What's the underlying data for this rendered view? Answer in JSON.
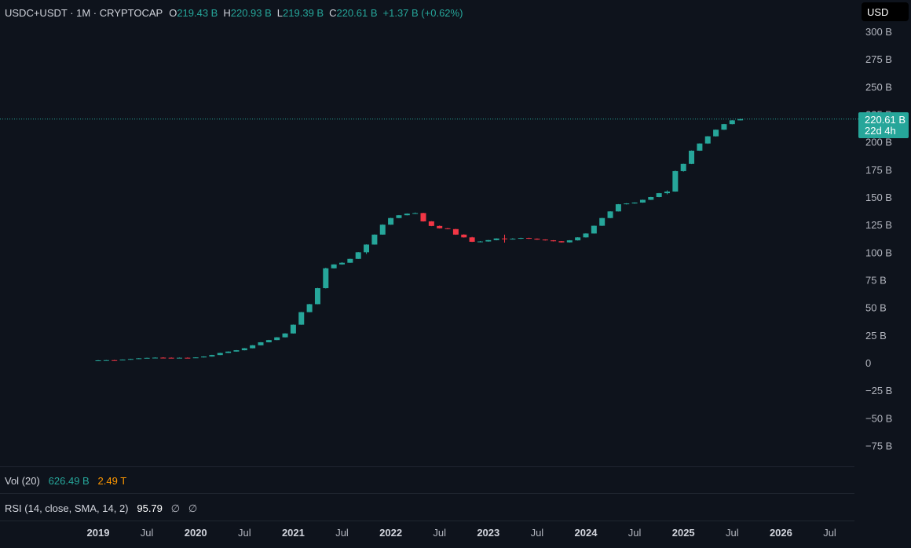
{
  "header": {
    "symbol": "USDC+USDT · 1M · CRYPTOCAP",
    "open_label": "O",
    "open": "219.43 B",
    "high_label": "H",
    "high": "220.93 B",
    "low_label": "L",
    "low": "219.39 B",
    "close_label": "C",
    "close": "220.61 B",
    "change": "+1.37 B (+0.62%)"
  },
  "currency_button": "USD",
  "price_label": {
    "value": "220.61 B",
    "countdown": "22d 4h"
  },
  "volume_pane": {
    "name": "Vol (20)",
    "value1": "626.49 B",
    "value2": "2.49 T"
  },
  "rsi_pane": {
    "name": "RSI (14, close, SMA, 14, 2)",
    "value": "95.79",
    "na1": "∅",
    "na2": "∅"
  },
  "colors": {
    "up": "#26a69a",
    "down": "#f23645",
    "background": "#0e131c",
    "text": "#b2b5be"
  },
  "chart_data": {
    "type": "candlestick",
    "title": "USDC+USDT · 1M · CRYPTOCAP",
    "xlabel": "",
    "ylabel": "",
    "ylim": [
      -85,
      315
    ],
    "y_ticks": [
      300,
      275,
      250,
      225,
      200,
      175,
      150,
      125,
      100,
      75,
      50,
      25,
      0,
      -25,
      -50,
      -75
    ],
    "y_tick_labels": [
      "300 B",
      "275 B",
      "250 B",
      "225 B",
      "200 B",
      "175 B",
      "150 B",
      "125 B",
      "100 B",
      "75 B",
      "50 B",
      "25 B",
      "0",
      "−25 B",
      "−50 B",
      "−75 B"
    ],
    "x_ticks": [
      {
        "label": "2019",
        "year": true,
        "index": 0
      },
      {
        "label": "Jul",
        "year": false,
        "index": 6
      },
      {
        "label": "2020",
        "year": true,
        "index": 12
      },
      {
        "label": "Jul",
        "year": false,
        "index": 18
      },
      {
        "label": "2021",
        "year": true,
        "index": 24
      },
      {
        "label": "Jul",
        "year": false,
        "index": 30
      },
      {
        "label": "2022",
        "year": true,
        "index": 36
      },
      {
        "label": "Jul",
        "year": false,
        "index": 42
      },
      {
        "label": "2023",
        "year": true,
        "index": 48
      },
      {
        "label": "Jul",
        "year": false,
        "index": 54
      },
      {
        "label": "2024",
        "year": true,
        "index": 60
      },
      {
        "label": "Jul",
        "year": false,
        "index": 66
      },
      {
        "label": "2025",
        "year": true,
        "index": 72
      },
      {
        "label": "Jul",
        "year": false,
        "index": 78
      },
      {
        "label": "2026",
        "year": true,
        "index": 84
      },
      {
        "label": "Jul",
        "year": false,
        "index": 90
      }
    ],
    "last_price": 220.61,
    "candles": [
      {
        "t": "2019-01",
        "o": 2.0,
        "h": 2.4,
        "l": 1.8,
        "c": 2.1
      },
      {
        "t": "2019-02",
        "o": 2.1,
        "h": 2.5,
        "l": 1.9,
        "c": 2.3
      },
      {
        "t": "2019-03",
        "o": 2.3,
        "h": 2.6,
        "l": 2.0,
        "c": 2.2
      },
      {
        "t": "2019-04",
        "o": 2.2,
        "h": 3.0,
        "l": 2.1,
        "c": 2.8
      },
      {
        "t": "2019-05",
        "o": 2.8,
        "h": 3.6,
        "l": 2.7,
        "c": 3.4
      },
      {
        "t": "2019-06",
        "o": 3.4,
        "h": 4.2,
        "l": 3.3,
        "c": 4.0
      },
      {
        "t": "2019-07",
        "o": 4.0,
        "h": 4.6,
        "l": 3.9,
        "c": 4.4
      },
      {
        "t": "2019-08",
        "o": 4.4,
        "h": 4.9,
        "l": 4.2,
        "c": 4.6
      },
      {
        "t": "2019-09",
        "o": 4.6,
        "h": 5.0,
        "l": 4.3,
        "c": 4.5
      },
      {
        "t": "2019-10",
        "o": 4.5,
        "h": 4.8,
        "l": 4.2,
        "c": 4.3
      },
      {
        "t": "2019-11",
        "o": 4.3,
        "h": 4.7,
        "l": 4.1,
        "c": 4.5
      },
      {
        "t": "2019-12",
        "o": 4.5,
        "h": 4.8,
        "l": 4.2,
        "c": 4.4
      },
      {
        "t": "2020-01",
        "o": 4.4,
        "h": 5.0,
        "l": 4.3,
        "c": 4.8
      },
      {
        "t": "2020-02",
        "o": 4.8,
        "h": 5.8,
        "l": 4.7,
        "c": 5.6
      },
      {
        "t": "2020-03",
        "o": 5.6,
        "h": 7.2,
        "l": 5.5,
        "c": 7.0
      },
      {
        "t": "2020-04",
        "o": 7.0,
        "h": 9.0,
        "l": 6.9,
        "c": 8.8
      },
      {
        "t": "2020-05",
        "o": 8.8,
        "h": 10.3,
        "l": 8.7,
        "c": 10.1
      },
      {
        "t": "2020-06",
        "o": 10.1,
        "h": 11.5,
        "l": 10.0,
        "c": 11.3
      },
      {
        "t": "2020-07",
        "o": 11.3,
        "h": 13.3,
        "l": 11.2,
        "c": 13.1
      },
      {
        "t": "2020-08",
        "o": 13.1,
        "h": 16.0,
        "l": 13.0,
        "c": 15.8
      },
      {
        "t": "2020-09",
        "o": 15.8,
        "h": 18.7,
        "l": 15.7,
        "c": 18.5
      },
      {
        "t": "2020-10",
        "o": 18.5,
        "h": 20.7,
        "l": 18.4,
        "c": 20.5
      },
      {
        "t": "2020-11",
        "o": 20.5,
        "h": 23.2,
        "l": 20.4,
        "c": 23.0
      },
      {
        "t": "2020-12",
        "o": 23.0,
        "h": 26.7,
        "l": 22.9,
        "c": 26.5
      },
      {
        "t": "2021-01",
        "o": 26.5,
        "h": 34.6,
        "l": 26.4,
        "c": 34.4
      },
      {
        "t": "2021-02",
        "o": 34.4,
        "h": 46.0,
        "l": 34.3,
        "c": 45.8
      },
      {
        "t": "2021-03",
        "o": 45.8,
        "h": 53.3,
        "l": 45.7,
        "c": 53.0
      },
      {
        "t": "2021-04",
        "o": 53.0,
        "h": 67.8,
        "l": 52.9,
        "c": 67.5
      },
      {
        "t": "2021-05",
        "o": 67.5,
        "h": 86.0,
        "l": 67.2,
        "c": 85.5
      },
      {
        "t": "2021-06",
        "o": 85.5,
        "h": 89.2,
        "l": 85.3,
        "c": 89.0
      },
      {
        "t": "2021-07",
        "o": 89.0,
        "h": 91.0,
        "l": 88.8,
        "c": 90.5
      },
      {
        "t": "2021-08",
        "o": 90.5,
        "h": 94.2,
        "l": 90.4,
        "c": 94.0
      },
      {
        "t": "2021-09",
        "o": 94.0,
        "h": 100.2,
        "l": 93.9,
        "c": 100.0
      },
      {
        "t": "2021-10",
        "o": 100.0,
        "h": 107.2,
        "l": 98.5,
        "c": 107.0
      },
      {
        "t": "2021-11",
        "o": 107.0,
        "h": 116.2,
        "l": 106.9,
        "c": 116.0
      },
      {
        "t": "2021-12",
        "o": 116.0,
        "h": 125.3,
        "l": 115.9,
        "c": 125.0
      },
      {
        "t": "2022-01",
        "o": 125.0,
        "h": 131.2,
        "l": 124.9,
        "c": 131.0
      },
      {
        "t": "2022-02",
        "o": 131.0,
        "h": 133.7,
        "l": 130.9,
        "c": 133.5
      },
      {
        "t": "2022-03",
        "o": 133.5,
        "h": 135.2,
        "l": 133.4,
        "c": 135.0
      },
      {
        "t": "2022-04",
        "o": 135.0,
        "h": 136.0,
        "l": 134.8,
        "c": 135.5
      },
      {
        "t": "2022-05",
        "o": 135.5,
        "h": 135.8,
        "l": 127.8,
        "c": 128.0
      },
      {
        "t": "2022-06",
        "o": 128.0,
        "h": 128.2,
        "l": 123.6,
        "c": 123.8
      },
      {
        "t": "2022-07",
        "o": 123.8,
        "h": 124.2,
        "l": 121.5,
        "c": 121.7
      },
      {
        "t": "2022-08",
        "o": 121.7,
        "h": 122.0,
        "l": 120.8,
        "c": 121.0
      },
      {
        "t": "2022-09",
        "o": 121.0,
        "h": 121.2,
        "l": 115.8,
        "c": 116.0
      },
      {
        "t": "2022-10",
        "o": 116.0,
        "h": 116.3,
        "l": 113.3,
        "c": 113.5
      },
      {
        "t": "2022-11",
        "o": 113.5,
        "h": 114.0,
        "l": 109.3,
        "c": 109.5
      },
      {
        "t": "2022-12",
        "o": 109.5,
        "h": 110.2,
        "l": 109.0,
        "c": 109.8
      },
      {
        "t": "2023-01",
        "o": 109.8,
        "h": 111.2,
        "l": 109.6,
        "c": 111.0
      },
      {
        "t": "2023-02",
        "o": 111.0,
        "h": 112.7,
        "l": 110.8,
        "c": 112.5
      },
      {
        "t": "2023-03",
        "o": 112.5,
        "h": 116.0,
        "l": 108.8,
        "c": 112.0
      },
      {
        "t": "2023-04",
        "o": 112.0,
        "h": 112.8,
        "l": 111.5,
        "c": 112.3
      },
      {
        "t": "2023-05",
        "o": 112.3,
        "h": 113.2,
        "l": 112.0,
        "c": 113.0
      },
      {
        "t": "2023-06",
        "o": 113.0,
        "h": 113.2,
        "l": 112.1,
        "c": 112.3
      },
      {
        "t": "2023-07",
        "o": 112.3,
        "h": 112.6,
        "l": 111.3,
        "c": 111.5
      },
      {
        "t": "2023-08",
        "o": 111.5,
        "h": 111.7,
        "l": 110.6,
        "c": 110.8
      },
      {
        "t": "2023-09",
        "o": 110.8,
        "h": 111.0,
        "l": 109.8,
        "c": 110.0
      },
      {
        "t": "2023-10",
        "o": 110.0,
        "h": 110.2,
        "l": 108.8,
        "c": 109.0
      },
      {
        "t": "2023-11",
        "o": 109.0,
        "h": 111.0,
        "l": 108.8,
        "c": 110.8
      },
      {
        "t": "2023-12",
        "o": 110.8,
        "h": 113.7,
        "l": 110.6,
        "c": 113.5
      },
      {
        "t": "2024-01",
        "o": 113.5,
        "h": 117.2,
        "l": 113.3,
        "c": 117.0
      },
      {
        "t": "2024-02",
        "o": 117.0,
        "h": 124.2,
        "l": 116.9,
        "c": 124.0
      },
      {
        "t": "2024-03",
        "o": 124.0,
        "h": 131.2,
        "l": 123.8,
        "c": 131.0
      },
      {
        "t": "2024-04",
        "o": 131.0,
        "h": 137.2,
        "l": 130.8,
        "c": 137.0
      },
      {
        "t": "2024-05",
        "o": 137.0,
        "h": 143.7,
        "l": 136.9,
        "c": 143.5
      },
      {
        "t": "2024-06",
        "o": 143.5,
        "h": 144.5,
        "l": 143.3,
        "c": 144.2
      },
      {
        "t": "2024-07",
        "o": 144.2,
        "h": 145.2,
        "l": 144.0,
        "c": 145.0
      },
      {
        "t": "2024-08",
        "o": 145.0,
        "h": 147.7,
        "l": 144.8,
        "c": 147.5
      },
      {
        "t": "2024-09",
        "o": 147.5,
        "h": 150.2,
        "l": 147.3,
        "c": 150.0
      },
      {
        "t": "2024-10",
        "o": 150.0,
        "h": 153.7,
        "l": 149.8,
        "c": 153.5
      },
      {
        "t": "2024-11",
        "o": 153.5,
        "h": 156.0,
        "l": 152.5,
        "c": 155.0
      },
      {
        "t": "2024-12",
        "o": 155.0,
        "h": 174.0,
        "l": 154.8,
        "c": 173.5
      },
      {
        "t": "2025-01",
        "o": 173.5,
        "h": 180.2,
        "l": 173.0,
        "c": 180.0
      },
      {
        "t": "2025-02",
        "o": 180.0,
        "h": 192.2,
        "l": 179.8,
        "c": 192.0
      },
      {
        "t": "2025-03",
        "o": 192.0,
        "h": 198.7,
        "l": 191.8,
        "c": 198.5
      },
      {
        "t": "2025-04",
        "o": 198.5,
        "h": 205.2,
        "l": 198.2,
        "c": 205.0
      },
      {
        "t": "2025-05",
        "o": 205.0,
        "h": 211.2,
        "l": 204.8,
        "c": 211.0
      },
      {
        "t": "2025-06",
        "o": 211.0,
        "h": 216.2,
        "l": 210.8,
        "c": 216.0
      },
      {
        "t": "2025-07",
        "o": 216.0,
        "h": 219.6,
        "l": 215.8,
        "c": 219.43
      },
      {
        "t": "2025-08",
        "o": 219.43,
        "h": 220.93,
        "l": 219.39,
        "c": 220.61
      }
    ]
  }
}
